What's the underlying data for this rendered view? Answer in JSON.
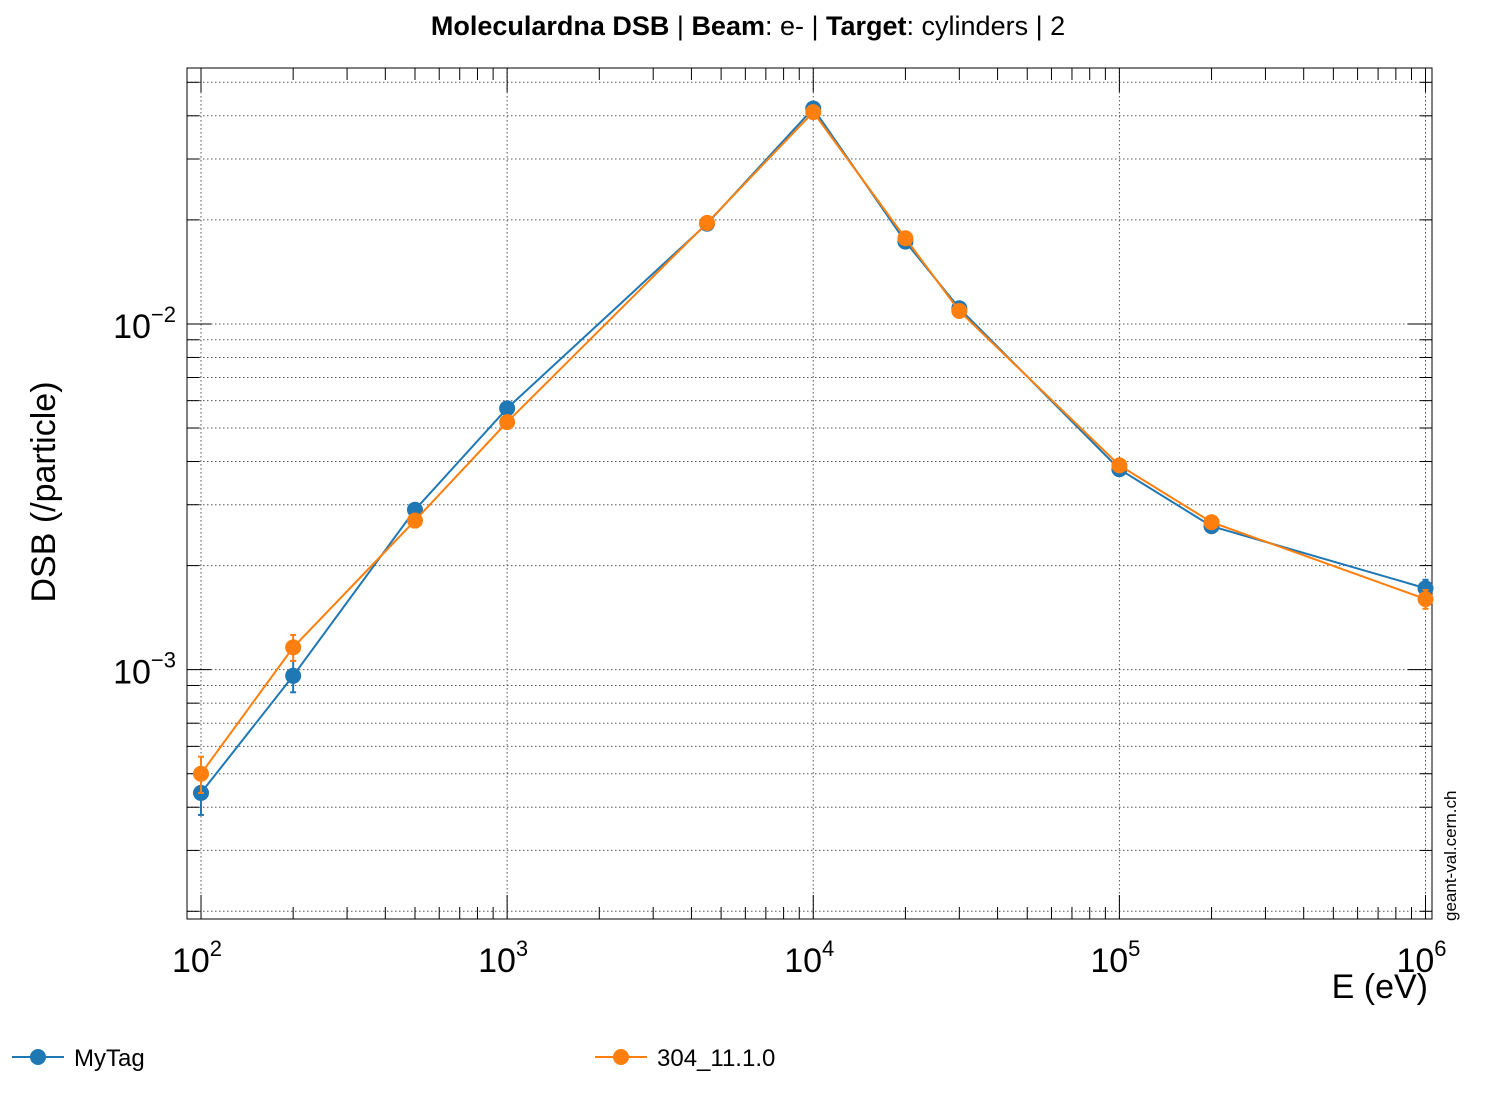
{
  "title": {
    "segments": [
      {
        "text": "Moleculardna DSB ",
        "bold": true
      },
      {
        "text": " | ",
        "bold": false
      },
      {
        "text": "Beam",
        "bold": true
      },
      {
        "text": ": e- | ",
        "bold": false
      },
      {
        "text": "Target",
        "bold": true
      },
      {
        "text": ": cylinders | 2",
        "bold": false
      }
    ]
  },
  "watermark": "geant-val.cern.ch",
  "chart_data": {
    "type": "line",
    "title": "Moleculardna DSB  | Beam: e- | Target: cylinders | 2",
    "xlabel": "E (eV)",
    "ylabel": "DSB (/particle)",
    "xscale": "log",
    "yscale": "log",
    "xlim": [
      90,
      1050000
    ],
    "ylim": [
      0.00019,
      0.055
    ],
    "grid": true,
    "legend_position": "bottom",
    "x_ticks": [
      {
        "base": "10",
        "exp": "2",
        "value": 100
      },
      {
        "base": "10",
        "exp": "3",
        "value": 1000
      },
      {
        "base": "10",
        "exp": "4",
        "value": 10000
      },
      {
        "base": "10",
        "exp": "5",
        "value": 100000
      },
      {
        "base": "10",
        "exp": "6",
        "value": 1000000
      }
    ],
    "y_ticks": [
      {
        "base": "10",
        "exp": "−3",
        "value": 0.001
      },
      {
        "base": "10",
        "exp": "−2",
        "value": 0.01
      }
    ],
    "series": [
      {
        "name": "MyTag",
        "color": "#1f77b4",
        "x": [
          100,
          200,
          500,
          1000,
          4500,
          10000,
          20000,
          30000,
          100000,
          200000,
          1000000
        ],
        "y": [
          0.00044,
          0.00096,
          0.0029,
          0.0057,
          0.0195,
          0.042,
          0.0173,
          0.0111,
          0.0038,
          0.0026,
          0.00172
        ],
        "err": [
          6e-05,
          0.0001,
          0.00012,
          0.0002,
          0.0004,
          0.0006,
          0.0004,
          0.0003,
          0.00012,
          0.0001,
          0.0001
        ]
      },
      {
        "name": "304_11.1.0",
        "color": "#ff7f0e",
        "x": [
          100,
          200,
          500,
          1000,
          4500,
          10000,
          20000,
          30000,
          100000,
          200000,
          1000000
        ],
        "y": [
          0.0005,
          0.00116,
          0.0027,
          0.0052,
          0.0196,
          0.041,
          0.0177,
          0.0109,
          0.0039,
          0.00267,
          0.0016
        ],
        "err": [
          6e-05,
          0.0001,
          0.00012,
          0.0002,
          0.0004,
          0.0006,
          0.0004,
          0.0003,
          0.00012,
          0.0001,
          0.0001
        ]
      }
    ]
  }
}
